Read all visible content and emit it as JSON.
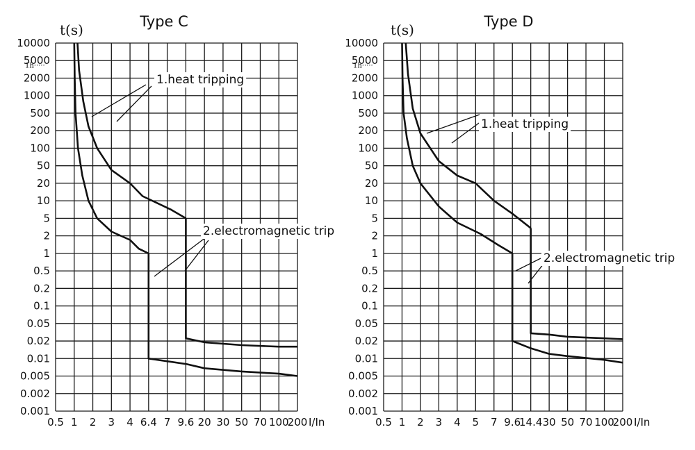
{
  "chart_data": [
    {
      "type": "line",
      "title": "Type C",
      "ylabel": "t(s)",
      "xlabel": "I/In",
      "y_scale": "log",
      "y_ticks": [
        "10000",
        "5000",
        "2000",
        "1000",
        "500",
        "200",
        "100",
        "50",
        "20",
        "10",
        "5",
        "2",
        "1",
        "0.5",
        "0.2",
        "0.1",
        "0.05",
        "0.02",
        "0.01",
        "0.005",
        "0.002",
        "0.001"
      ],
      "x_ticks": [
        "0.5",
        "1",
        "2",
        "3",
        "4",
        "6.4",
        "7",
        "9.6",
        "20",
        "30",
        "50",
        "70",
        "100",
        "200"
      ],
      "x_tick_values": [
        0.5,
        1,
        2,
        3,
        4,
        6.4,
        7,
        9.6,
        20,
        30,
        50,
        70,
        100,
        200
      ],
      "ylim": [
        0.001,
        10000
      ],
      "extra_label": "1h",
      "series": [
        {
          "name": "1.heat tripping",
          "points": [
            [
              1,
              10000
            ],
            [
              1.02,
              2000
            ],
            [
              1.05,
              500
            ],
            [
              1.15,
              100
            ],
            [
              1.35,
              30
            ],
            [
              1.7,
              10
            ],
            [
              2.2,
              5
            ],
            [
              3,
              2.5
            ],
            [
              4,
              1.7
            ],
            [
              5,
              1.2
            ],
            [
              6.4,
              1
            ]
          ]
        },
        {
          "name": "1.heat tripping",
          "points": [
            [
              1.13,
              10000
            ],
            [
              1.2,
              3000
            ],
            [
              1.4,
              800
            ],
            [
              1.7,
              250
            ],
            [
              2.2,
              100
            ],
            [
              3,
              40
            ],
            [
              4,
              20
            ],
            [
              5.5,
              12
            ],
            [
              7.5,
              7
            ],
            [
              9.6,
              5
            ]
          ]
        },
        {
          "name": "2.electromagnetic trip",
          "points": [
            [
              6.4,
              1
            ],
            [
              6.4,
              0.01
            ],
            [
              10,
              0.008
            ],
            [
              20,
              0.0068
            ],
            [
              50,
              0.006
            ],
            [
              100,
              0.0055
            ],
            [
              200,
              0.005
            ]
          ]
        },
        {
          "name": "2.electromagnetic trip",
          "points": [
            [
              9.6,
              5
            ],
            [
              9.6,
              0.023
            ],
            [
              20,
              0.019
            ],
            [
              50,
              0.017
            ],
            [
              100,
              0.016
            ],
            [
              200,
              0.016
            ]
          ]
        }
      ],
      "annotations": [
        "1.heat tripping",
        "2.electromagnetic trip"
      ]
    },
    {
      "type": "line",
      "title": "Type D",
      "ylabel": "t(s)",
      "xlabel": "I/In",
      "y_scale": "log",
      "y_ticks": [
        "10000",
        "5000",
        "2000",
        "1000",
        "500",
        "200",
        "100",
        "50",
        "20",
        "10",
        "5",
        "2",
        "1",
        "0.5",
        "0.2",
        "0.1",
        "0.05",
        "0.02",
        "0.01",
        "0.005",
        "0.002",
        "0.001"
      ],
      "x_ticks": [
        "0.5",
        "1",
        "2",
        "3",
        "4",
        "5",
        "7",
        "9.6",
        "14.4",
        "30",
        "50",
        "70",
        "100",
        "200"
      ],
      "x_tick_values": [
        0.5,
        1,
        2,
        3,
        4,
        5,
        7,
        9.6,
        14.4,
        30,
        50,
        70,
        100,
        200
      ],
      "ylim": [
        0.001,
        10000
      ],
      "extra_label": "1h",
      "series": [
        {
          "name": "1.heat tripping",
          "points": [
            [
              1,
              10000
            ],
            [
              1.02,
              2000
            ],
            [
              1.06,
              500
            ],
            [
              1.2,
              150
            ],
            [
              1.5,
              50
            ],
            [
              2,
              20
            ],
            [
              3,
              8
            ],
            [
              4,
              4
            ],
            [
              5.5,
              2.2
            ],
            [
              7.5,
              1.4
            ],
            [
              9.6,
              1
            ]
          ]
        },
        {
          "name": "1.heat tripping",
          "points": [
            [
              1.15,
              10000
            ],
            [
              1.25,
              2500
            ],
            [
              1.5,
              600
            ],
            [
              2,
              180
            ],
            [
              3,
              60
            ],
            [
              4,
              30
            ],
            [
              5,
              20
            ],
            [
              7,
              10
            ],
            [
              9.6,
              6
            ],
            [
              14.4,
              3
            ]
          ]
        },
        {
          "name": "2.electromagnetic trip",
          "points": [
            [
              9.6,
              1
            ],
            [
              9.6,
              0.02
            ],
            [
              14.4,
              0.015
            ],
            [
              30,
              0.012
            ],
            [
              50,
              0.011
            ],
            [
              100,
              0.0095
            ],
            [
              200,
              0.0085
            ]
          ]
        },
        {
          "name": "2.electromagnetic trip",
          "points": [
            [
              14.4,
              3
            ],
            [
              14.4,
              0.03
            ],
            [
              30,
              0.028
            ],
            [
              50,
              0.025
            ],
            [
              100,
              0.023
            ],
            [
              200,
              0.022
            ]
          ]
        }
      ],
      "annotations": [
        "1.heat tripping",
        "2.electromagnetic trip"
      ]
    }
  ]
}
